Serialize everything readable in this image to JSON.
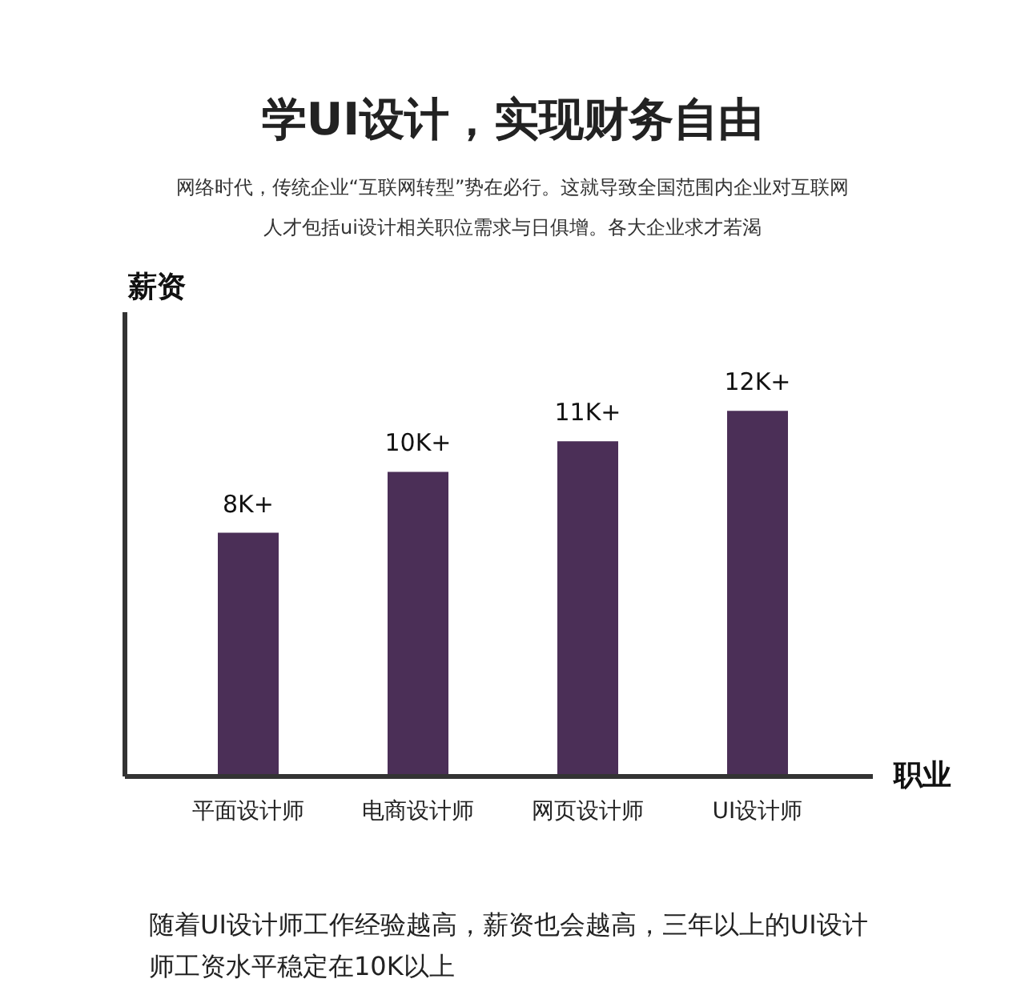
{
  "chart_data": {
    "type": "bar",
    "title": "学UI设计，实现财务自由",
    "subtitle": "网络时代，传统企业“互联网转型”势在必行。这就导致全国范围内企业对互联网人才包括ui设计相关职位需求与日俱增。各大企业求才若渴",
    "xlabel": "职业",
    "ylabel": "薪资",
    "categories": [
      "平面设计师",
      "电商设计师",
      "网页设计师",
      "UI设计师"
    ],
    "values": [
      8,
      10,
      11,
      12
    ],
    "value_labels": [
      "8K+",
      "10K+",
      "11K+",
      "12K+"
    ],
    "color": "#4b2f57",
    "annotations": [
      "随着UI设计师工作经验越高，薪资也会越高，三年以上的UI设计师工资水平稳定在10K以上"
    ]
  }
}
